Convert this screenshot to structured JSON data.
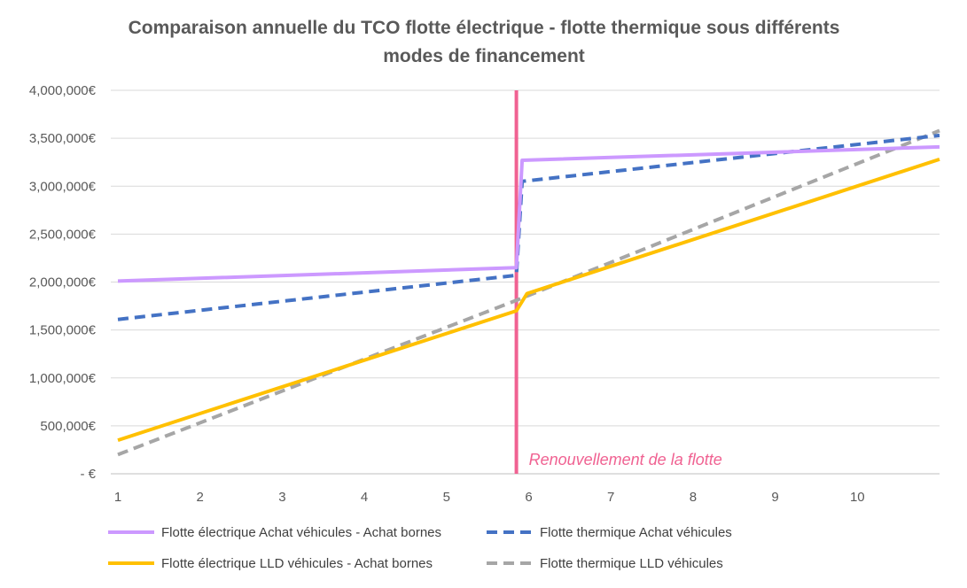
{
  "chart_data": {
    "type": "line",
    "title_lines": [
      "Comparaison annuelle du TCO flotte électrique - flotte thermique sous différents",
      "modes de financement"
    ],
    "xlabel": "",
    "ylabel": "",
    "x_ticks": [
      "1",
      "2",
      "3",
      "4",
      "5",
      "6",
      "7",
      "8",
      "9",
      "10"
    ],
    "xlim": [
      1,
      11
    ],
    "ylim": [
      0,
      4000000
    ],
    "y_ticks": [
      0,
      500000,
      1000000,
      1500000,
      2000000,
      2500000,
      3000000,
      3500000,
      4000000
    ],
    "y_tick_labels": [
      "-   €",
      "500,000€",
      "1,000,000€",
      "1,500,000€",
      "2,000,000€",
      "2,500,000€",
      "3,000,000€",
      "3,500,000€",
      "4,000,000€"
    ],
    "grid": "horizontal",
    "legend_position": "bottom",
    "series": [
      {
        "name": "Flotte électrique Achat véhicules - Achat bornes",
        "color": "#cc99ff",
        "style": "solid",
        "points": [
          [
            1,
            2010000
          ],
          [
            5.85,
            2150000
          ],
          [
            5.92,
            3270000
          ],
          [
            11,
            3410000
          ]
        ]
      },
      {
        "name": "Flotte thermique Achat véhicules",
        "color": "#4472c4",
        "style": "dashed",
        "points": [
          [
            1,
            1610000
          ],
          [
            5.85,
            2070000
          ],
          [
            5.92,
            3050000
          ],
          [
            11,
            3530000
          ]
        ]
      },
      {
        "name": "Flotte électrique LLD véhicules - Achat bornes",
        "color": "#ffc000",
        "style": "solid",
        "points": [
          [
            1,
            350000
          ],
          [
            5.85,
            1700000
          ],
          [
            5.98,
            1880000
          ],
          [
            11,
            3280000
          ]
        ]
      },
      {
        "name": "Flotte thermique LLD véhicules",
        "color": "#a6a6a6",
        "style": "dashed",
        "points": [
          [
            1,
            200000
          ],
          [
            5.85,
            1810000
          ],
          [
            11,
            3580000
          ]
        ]
      }
    ],
    "annotations": [
      {
        "type": "vline",
        "x": 5.85,
        "color": "#f06292",
        "label": "Renouvellement de la flotte"
      }
    ]
  }
}
